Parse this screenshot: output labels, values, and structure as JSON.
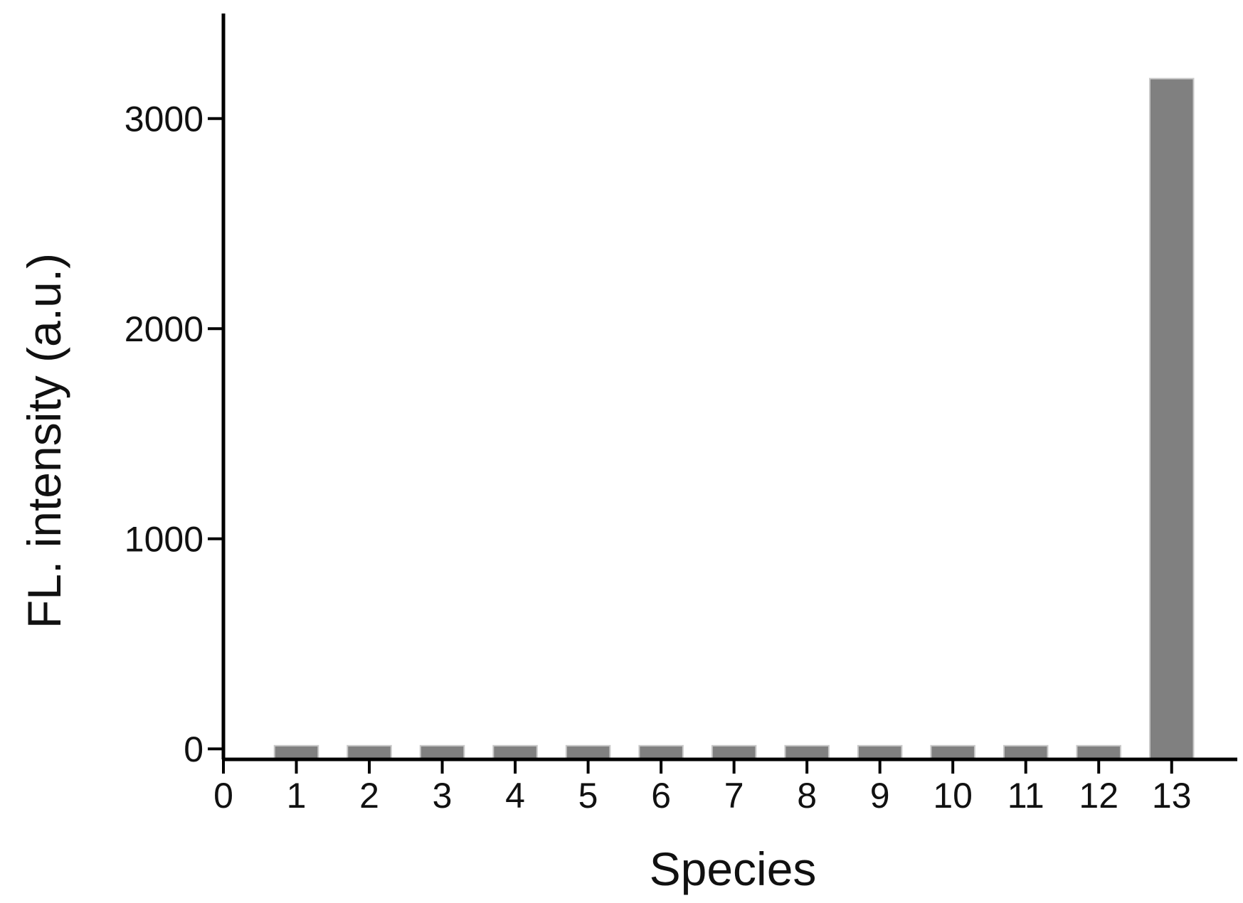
{
  "chart_data": {
    "type": "bar",
    "x_label": "Species",
    "y_label": "FL. intensity (a.u.)",
    "x": [
      1,
      2,
      3,
      4,
      5,
      6,
      7,
      8,
      9,
      10,
      11,
      12,
      13
    ],
    "values": [
      15,
      15,
      15,
      15,
      15,
      15,
      15,
      15,
      15,
      15,
      15,
      15,
      3190
    ],
    "color": "#808080",
    "xlim": [
      0,
      13.9
    ],
    "xticks": [
      0,
      1,
      2,
      3,
      4,
      5,
      6,
      7,
      8,
      9,
      10,
      11,
      12,
      13
    ],
    "ylim": [
      -50,
      3500
    ],
    "yticks": [
      0,
      1000,
      2000,
      3000
    ],
    "grid": false
  }
}
